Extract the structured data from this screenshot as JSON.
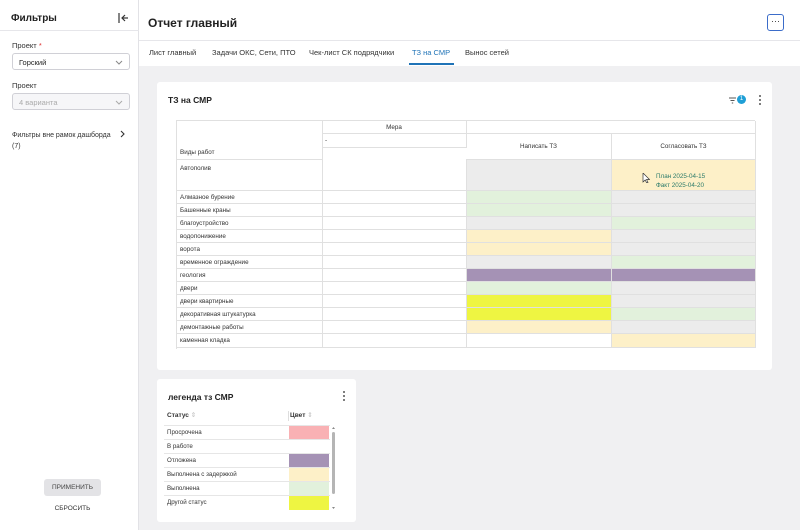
{
  "sidebar": {
    "title": "Фильтры",
    "project_label": "Проект",
    "project_required": "*",
    "project_value": "Горский",
    "project2_label": "Проект",
    "project2_placeholder": "4 варианта",
    "filters_outside": "Фильтры вне рамок дашборда",
    "filters_outside_count": "(7)",
    "apply_label": "ПРИМЕНИТЬ",
    "reset_label": "СБРОСИТЬ"
  },
  "header": {
    "title": "Отчет главный",
    "more_label": "···",
    "tabs": [
      {
        "label": "Лист главный"
      },
      {
        "label": "Задачи ОКС, Сети, ПТО"
      },
      {
        "label": "Чек-лист СК подрядчики"
      },
      {
        "label": "ТЗ на СМР"
      },
      {
        "label": "Вынос сетей"
      }
    ],
    "active_tab_index": 3
  },
  "main_card": {
    "title": "ТЗ на СМР",
    "filter_count": "1",
    "measure_header": "Мера",
    "measure_sub": "-",
    "rows_header": "Виды работ",
    "col1": "Написать ТЗ",
    "col2": "Согласовать ТЗ",
    "plan_text": "План 2025-04-15",
    "fact_text": "Факт 2025-04-20",
    "rows": [
      {
        "label": "Автополив",
        "c1": "#ececec",
        "c2": "#fdf0c8"
      },
      {
        "label": "Алмазное бурение",
        "c1": "#e2f1dc",
        "c2": "#ececec"
      },
      {
        "label": "Башенные краны",
        "c1": "#e2f1dc",
        "c2": "#ececec"
      },
      {
        "label": "благоустройство",
        "c1": "#ececec",
        "c2": "#e2f1dc"
      },
      {
        "label": "водопонижение",
        "c1": "#fdf0c8",
        "c2": "#ececec"
      },
      {
        "label": "ворота",
        "c1": "#fdf0c8",
        "c2": "#ececec"
      },
      {
        "label": "временное ограждение",
        "c1": "#ececec",
        "c2": "#e2f1dc"
      },
      {
        "label": "геология",
        "c1": "#a592b5",
        "c2": "#a592b5"
      },
      {
        "label": "двери",
        "c1": "#e2f1dc",
        "c2": "#ececec"
      },
      {
        "label": "двери квартирные",
        "c1": "#eef542",
        "c2": "#ececec"
      },
      {
        "label": "декоративная штукатурка",
        "c1": "#eef542",
        "c2": "#e2f1dc"
      },
      {
        "label": "демонтажные работы",
        "c1": "#fdf0c8",
        "c2": "#ececec"
      },
      {
        "label": "каменная кладка",
        "c1": "#ffffff",
        "c2": "#fdf0c8"
      }
    ]
  },
  "legend_card": {
    "title": "легенда тз СМР",
    "col_status": "Статус",
    "col_color": "Цвет",
    "items": [
      {
        "label": "Просрочена",
        "color": "#f9b1b4"
      },
      {
        "label": "В работе",
        "color": "#ffffff"
      },
      {
        "label": "Отложена",
        "color": "#a592b5"
      },
      {
        "label": "Выполнена с задержкой",
        "color": "#fdf0c8"
      },
      {
        "label": "Выполнена",
        "color": "#e2f1dc"
      },
      {
        "label": "Другой статус",
        "color": "#eef542"
      }
    ]
  }
}
